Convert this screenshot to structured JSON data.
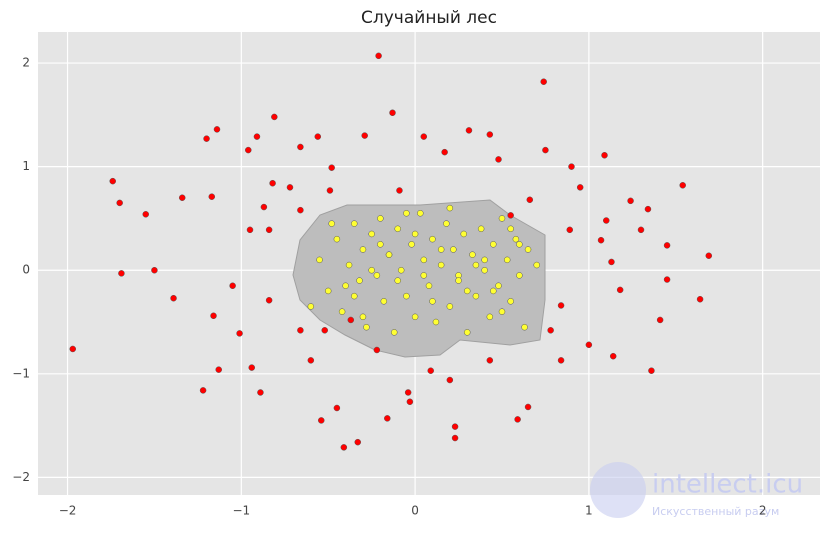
{
  "chart_data": {
    "type": "scatter",
    "title": "Случайный лес",
    "xlim": [
      -2.17,
      2.33
    ],
    "ylim": [
      -2.17,
      2.3
    ],
    "xticks": [
      {
        "value": -2,
        "label": "−2"
      },
      {
        "value": -1,
        "label": "−1"
      },
      0,
      1,
      2
    ],
    "yticks": [
      {
        "value": -2,
        "label": "−2"
      },
      {
        "value": -1,
        "label": "−1"
      },
      0,
      1,
      2
    ],
    "grid": true,
    "series": [
      {
        "color": "#ff0000",
        "x": [
          -1.97,
          -1.74,
          -1.7,
          -1.69,
          -1.55,
          -1.5,
          -1.39,
          -1.34,
          -1.22,
          -1.2,
          -1.14,
          -1.17,
          -1.16,
          -1.13,
          -1.05,
          -1.01,
          -0.96,
          -0.94,
          -0.91,
          -0.87,
          -0.81,
          -0.82,
          -0.89,
          -0.72,
          -0.66,
          -0.6,
          -0.56,
          -0.54,
          -0.48,
          -0.45,
          -0.41,
          -0.33,
          -0.29,
          -0.21,
          -0.22,
          -0.16,
          -0.13,
          -0.04,
          -0.03,
          0.05,
          0.17,
          0.23,
          0.23,
          0.31,
          0.43,
          0.48,
          0.59,
          0.65,
          0.74,
          0.75,
          0.9,
          0.95,
          1.09,
          1.1,
          1.13,
          1.18,
          1.14,
          1.24,
          1.34,
          1.36,
          1.41,
          1.45,
          1.54,
          1.64,
          1.69,
          1.45,
          1.0,
          0.84,
          0.43,
          0.09,
          -0.37,
          -0.52,
          -0.84,
          -0.95,
          -0.66,
          -0.09,
          -0.49,
          0.66,
          0.55,
          0.89,
          1.07,
          1.3,
          0.78,
          -0.84,
          -0.66,
          0.84,
          0.2
        ],
        "values": [
          -0.76,
          0.86,
          0.65,
          -0.03,
          0.54,
          0.0,
          -0.27,
          0.7,
          -1.16,
          1.27,
          1.36,
          0.71,
          -0.44,
          -0.96,
          -0.15,
          -0.61,
          1.16,
          -0.94,
          1.29,
          0.61,
          1.48,
          0.84,
          -1.18,
          0.8,
          1.19,
          -0.87,
          1.29,
          -1.45,
          0.99,
          -1.33,
          -1.71,
          -1.66,
          1.3,
          2.07,
          -0.77,
          -1.43,
          1.52,
          -1.18,
          -1.27,
          1.29,
          1.14,
          -1.51,
          -1.62,
          1.35,
          1.31,
          1.07,
          -1.44,
          -1.32,
          1.82,
          1.16,
          1.0,
          0.8,
          1.11,
          0.48,
          0.08,
          -0.19,
          -0.83,
          0.67,
          0.59,
          -0.97,
          -0.48,
          -0.09,
          0.82,
          -0.28,
          0.14,
          0.24,
          -0.72,
          -0.34,
          -0.87,
          -0.97,
          -0.48,
          -0.58,
          0.39,
          0.39,
          0.58,
          0.77,
          0.77,
          0.68,
          0.53,
          0.39,
          0.29,
          0.39,
          -0.58,
          -0.29,
          -0.58,
          -0.87,
          -1.06
        ]
      },
      {
        "color": "#ffff33",
        "x": [
          -0.55,
          -0.5,
          -0.45,
          -0.42,
          -0.38,
          -0.35,
          -0.32,
          -0.3,
          -0.28,
          -0.25,
          -0.22,
          -0.2,
          -0.18,
          -0.15,
          -0.12,
          -0.1,
          -0.08,
          -0.05,
          -0.02,
          0.0,
          0.03,
          0.05,
          0.08,
          0.1,
          0.12,
          0.15,
          0.18,
          0.2,
          0.22,
          0.25,
          0.28,
          0.3,
          0.33,
          0.35,
          0.38,
          0.4,
          0.43,
          0.45,
          0.48,
          0.5,
          0.53,
          0.55,
          0.58,
          0.6,
          0.63,
          0.65,
          0.7,
          -0.6,
          -0.48,
          -0.4,
          -0.3,
          -0.2,
          -0.1,
          0.0,
          0.1,
          0.2,
          0.3,
          0.4,
          0.5,
          0.6,
          -0.25,
          -0.15,
          0.05,
          0.15,
          0.35,
          0.45,
          -0.35,
          0.25,
          -0.05,
          0.55
        ],
        "values": [
          0.1,
          -0.2,
          0.3,
          -0.4,
          0.05,
          0.45,
          -0.1,
          0.2,
          -0.55,
          0.35,
          -0.05,
          0.5,
          -0.3,
          0.15,
          -0.6,
          0.4,
          0.0,
          -0.25,
          0.25,
          -0.45,
          0.55,
          0.1,
          -0.15,
          0.3,
          -0.5,
          0.05,
          0.45,
          -0.35,
          0.2,
          -0.05,
          0.35,
          -0.6,
          0.15,
          -0.25,
          0.4,
          0.0,
          -0.45,
          0.25,
          -0.15,
          0.5,
          0.1,
          -0.3,
          0.3,
          -0.05,
          -0.55,
          0.2,
          0.05,
          -0.35,
          0.45,
          -0.15,
          -0.45,
          0.25,
          -0.1,
          0.35,
          -0.3,
          0.6,
          -0.2,
          0.1,
          -0.4,
          0.25,
          0.0,
          0.15,
          -0.05,
          0.2,
          0.05,
          -0.2,
          -0.25,
          -0.1,
          0.55,
          0.4
        ]
      }
    ]
  },
  "watermark": {
    "title": "intellect.icu",
    "subtitle": "Искусственный разум"
  }
}
